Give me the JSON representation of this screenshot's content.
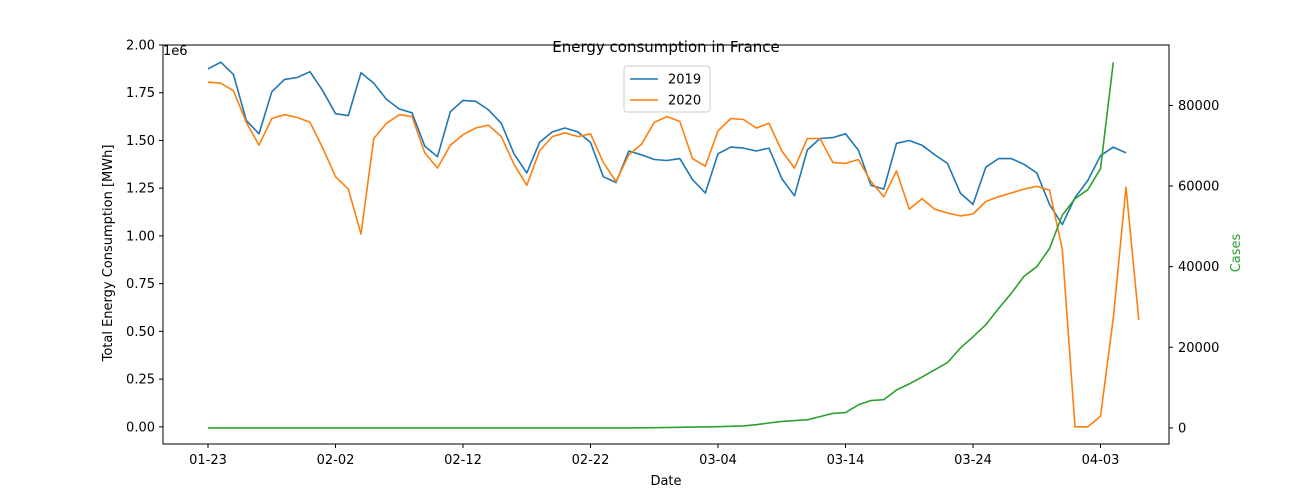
{
  "chart_data": {
    "type": "line",
    "title": "Energy consumption in France",
    "xlabel": "Date",
    "ylabel": "Total Energy Consumption [MWh]",
    "y_offset_label": "1e6",
    "y2label": "Cases",
    "y2label_color": "#2ca02c",
    "x_tick_labels": [
      "01-23",
      "02-02",
      "02-12",
      "02-22",
      "03-04",
      "03-14",
      "03-24",
      "04-03"
    ],
    "x_tick_index": [
      0,
      10,
      20,
      30,
      40,
      50,
      60,
      70
    ],
    "ylim": [
      -0.09,
      2.0
    ],
    "y_ticks": [
      0.0,
      0.25,
      0.5,
      0.75,
      1.0,
      1.25,
      1.5,
      1.75,
      2.0
    ],
    "y_tick_labels": [
      "0.00",
      "0.25",
      "0.50",
      "0.75",
      "1.00",
      "1.25",
      "1.50",
      "1.75",
      "2.00"
    ],
    "y2lim": [
      -4000,
      95000
    ],
    "y2_ticks": [
      0,
      20000,
      40000,
      60000,
      80000
    ],
    "y2_tick_labels": [
      "0",
      "20000",
      "40000",
      "60000",
      "80000"
    ],
    "legend_position": "upper-center",
    "series": [
      {
        "name": "2019",
        "color": "#1f77b4",
        "axis": "left",
        "values": [
          1.875,
          1.91,
          1.845,
          1.605,
          1.535,
          1.755,
          1.82,
          1.83,
          1.86,
          1.76,
          1.64,
          1.63,
          1.855,
          1.8,
          1.715,
          1.665,
          1.645,
          1.47,
          1.415,
          1.65,
          1.71,
          1.705,
          1.66,
          1.59,
          1.43,
          1.33,
          1.49,
          1.545,
          1.565,
          1.545,
          1.49,
          1.31,
          1.28,
          1.445,
          1.425,
          1.4,
          1.395,
          1.405,
          1.295,
          1.225,
          1.43,
          1.465,
          1.46,
          1.445,
          1.46,
          1.3,
          1.21,
          1.45,
          1.51,
          1.515,
          1.535,
          1.45,
          1.265,
          1.245,
          1.485,
          1.5,
          1.475,
          1.425,
          1.38,
          1.225,
          1.165,
          1.36,
          1.405,
          1.405,
          1.375,
          1.33,
          1.165,
          1.06,
          1.2,
          1.29,
          1.42,
          1.465,
          1.435
        ]
      },
      {
        "name": "2020",
        "color": "#ff7f0e",
        "axis": "left",
        "values": [
          1.805,
          1.8,
          1.76,
          1.595,
          1.475,
          1.615,
          1.635,
          1.62,
          1.595,
          1.46,
          1.31,
          1.245,
          1.01,
          1.51,
          1.59,
          1.635,
          1.625,
          1.435,
          1.355,
          1.475,
          1.53,
          1.565,
          1.58,
          1.52,
          1.375,
          1.265,
          1.445,
          1.52,
          1.54,
          1.52,
          1.535,
          1.385,
          1.285,
          1.425,
          1.48,
          1.595,
          1.625,
          1.6,
          1.405,
          1.365,
          1.55,
          1.615,
          1.61,
          1.565,
          1.59,
          1.445,
          1.355,
          1.51,
          1.51,
          1.385,
          1.38,
          1.4,
          1.285,
          1.205,
          1.34,
          1.14,
          1.195,
          1.14,
          1.12,
          1.105,
          1.115,
          1.18,
          1.205,
          1.225,
          1.245,
          1.26,
          1.24,
          0.93,
          0.0,
          0.0,
          0.055,
          0.57,
          1.255,
          0.56
        ]
      },
      {
        "name": "Cases",
        "color": "#2ca02c",
        "axis": "right",
        "start_index": 0,
        "values": [
          0,
          0,
          0,
          0,
          0,
          0,
          0,
          0,
          0,
          0,
          0,
          0,
          0,
          0,
          0,
          0,
          0,
          0,
          0,
          0,
          0,
          0,
          0,
          0,
          0,
          0,
          0,
          0,
          0,
          0,
          0,
          0,
          0,
          0,
          20,
          50,
          100,
          150,
          200,
          250,
          300,
          400,
          500,
          800,
          1200,
          1600,
          1800,
          2000,
          2800,
          3600,
          3800,
          5700,
          6800,
          7000,
          9400,
          10900,
          12600,
          14400,
          16200,
          19800,
          22600,
          25600,
          29600,
          33400,
          37600,
          40000,
          44500,
          52800,
          56900,
          59100,
          64300,
          90700
        ]
      }
    ]
  }
}
